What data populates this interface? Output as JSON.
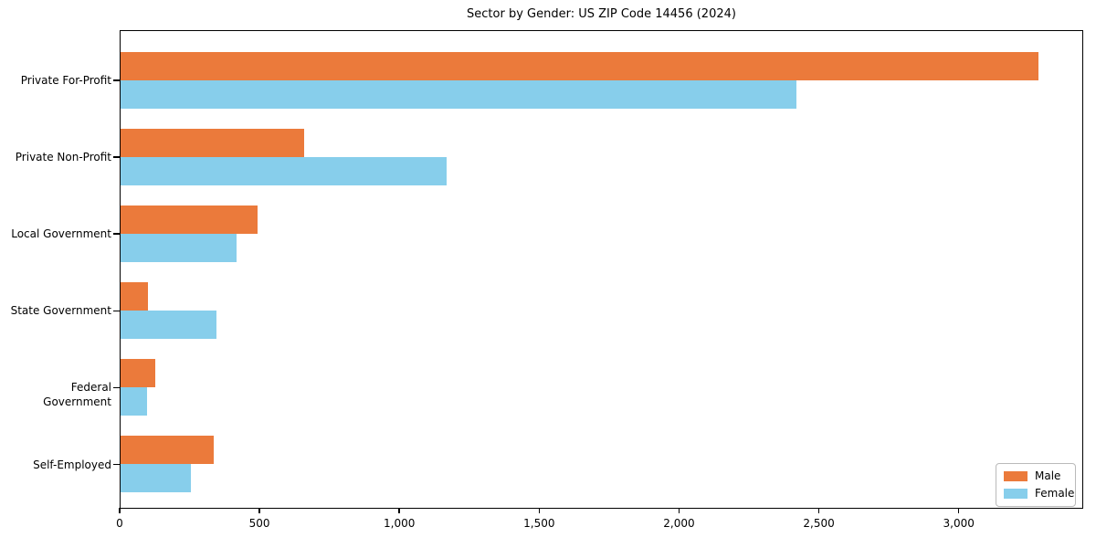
{
  "title": "Sector by Gender: US ZIP Code 14456 (2024)",
  "chart_data": {
    "type": "bar",
    "orientation": "horizontal",
    "title": "Sector by Gender: US ZIP Code 14456 (2024)",
    "categories": [
      "Private For-Profit",
      "Private Non-Profit",
      "Local Government",
      "State Government",
      "Federal Government",
      "Self-Employed"
    ],
    "series": [
      {
        "name": "Male",
        "color": "#EB7A3B",
        "values": [
          3281,
          657,
          490,
          98,
          124,
          333
        ]
      },
      {
        "name": "Female",
        "color": "#87CEEB",
        "values": [
          2415,
          1167,
          415,
          343,
          95,
          252
        ]
      }
    ],
    "xlabel": "",
    "ylabel": "",
    "xlim": [
      0,
      3445
    ],
    "x_ticks": {
      "values": [
        0,
        500,
        1000,
        1500,
        2000,
        2500,
        3000
      ],
      "labels": [
        "0",
        "500",
        "1,000",
        "1,500",
        "2,000",
        "2,500",
        "3,000"
      ]
    },
    "grid": false,
    "legend_position": "lower right"
  }
}
